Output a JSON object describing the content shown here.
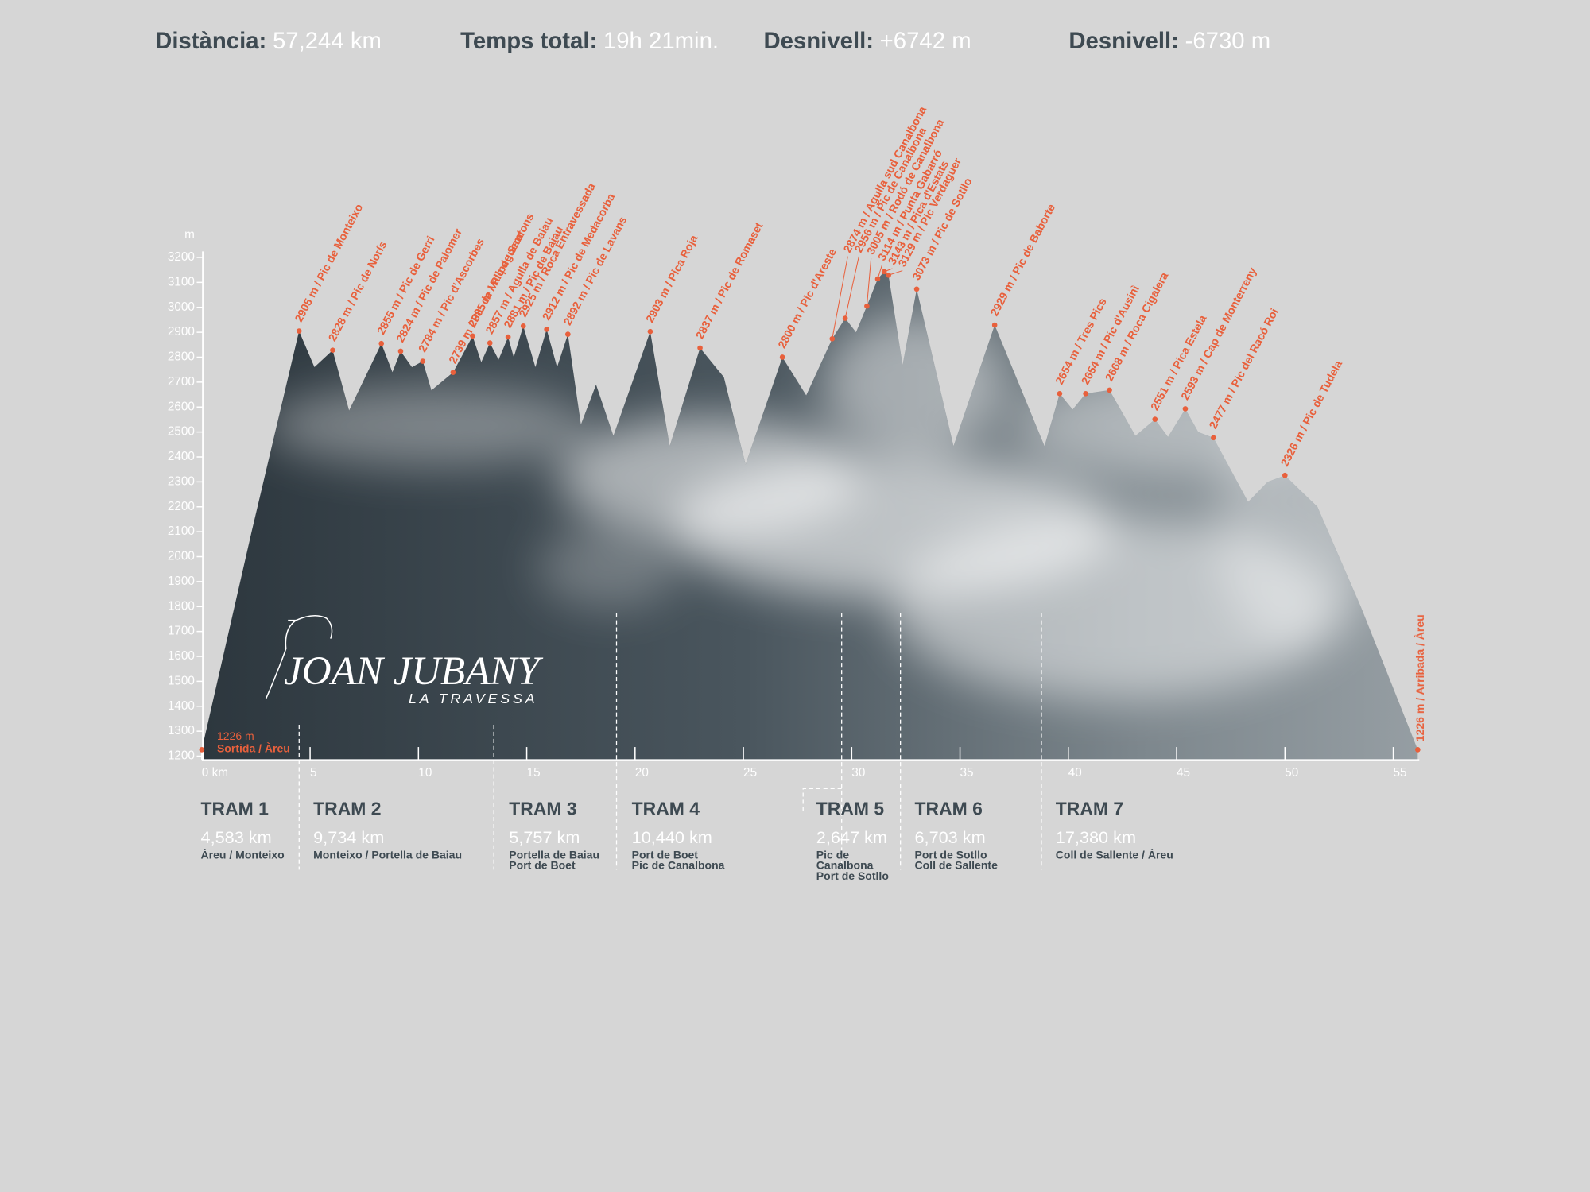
{
  "header": {
    "stats": [
      {
        "label": "Distància:",
        "value": "57,244 km"
      },
      {
        "label": "Temps total:",
        "value": "19h 21min."
      },
      {
        "label": "Desnivell:",
        "value": "+6742 m"
      },
      {
        "label": "Desnivell:",
        "value": "-6730 m"
      }
    ]
  },
  "chart_data": {
    "type": "area",
    "y_unit": "m",
    "x": [
      0,
      2.3,
      4.49,
      5.2,
      6.04,
      6.8,
      8.29,
      8.8,
      9.18,
      9.7,
      10.2,
      10.6,
      11.6,
      12.5,
      12.9,
      13.3,
      13.7,
      14.14,
      14.4,
      14.84,
      15.4,
      15.92,
      16.4,
      16.9,
      17.5,
      18.2,
      19.0,
      20.7,
      21.6,
      23.0,
      24.1,
      25.1,
      26.8,
      27.9,
      29.1,
      29.7,
      30.2,
      30.7,
      31.2,
      31.5,
      31.7,
      32.35,
      33.0,
      34.7,
      36.6,
      38.9,
      39.6,
      40.2,
      40.8,
      41.9,
      43.1,
      44.0,
      44.6,
      45.4,
      46.0,
      46.7,
      48.3,
      49.2,
      50.0,
      51.5,
      53.5,
      56.13
    ],
    "values": [
      1226,
      2100,
      2905,
      2760,
      2828,
      2586,
      2855,
      2740,
      2824,
      2760,
      2784,
      2667,
      2739,
      2885,
      2780,
      2857,
      2790,
      2881,
      2800,
      2925,
      2760,
      2912,
      2760,
      2892,
      2530,
      2690,
      2485,
      2903,
      2444,
      2837,
      2720,
      2370,
      2800,
      2647,
      2874,
      2956,
      2900,
      3005,
      3114,
      3143,
      3129,
      2769,
      3073,
      2444,
      2929,
      2444,
      2654,
      2590,
      2654,
      2668,
      2485,
      2551,
      2480,
      2593,
      2500,
      2477,
      2220,
      2300,
      2326,
      2200,
      1800,
      1226
    ],
    "xlim": [
      0,
      56.2
    ],
    "ylim": [
      1200,
      3200
    ],
    "xticks": [
      {
        "value": 0,
        "label": "0 km"
      },
      5,
      10,
      15,
      20,
      25,
      30,
      35,
      40,
      45,
      50,
      55
    ],
    "yticks": [
      1200,
      1300,
      1400,
      1500,
      1600,
      1700,
      1800,
      1900,
      2000,
      2100,
      2200,
      2300,
      2400,
      2500,
      2600,
      2700,
      2800,
      2900,
      3000,
      3100,
      3200
    ],
    "accent_color": "#e8603c",
    "start": {
      "km": 0,
      "elevation": 1226,
      "elevation_label": "1226 m",
      "label": "Sortida / Àreu"
    },
    "end": {
      "km": 56.13,
      "elevation": 1226,
      "label": "1226 m / Arribada / Àreu"
    },
    "peaks": [
      {
        "label": "2905 m / Pic de Monteixo",
        "km": 4.49,
        "elevation": 2905
      },
      {
        "label": "2828 m / Pic de Norís",
        "km": 6.04,
        "elevation": 2828
      },
      {
        "label": "2855 m / Pic de Gerri",
        "km": 8.29,
        "elevation": 2855
      },
      {
        "label": "2824 m / Pic de Palomer",
        "km": 9.18,
        "elevation": 2824
      },
      {
        "label": "2784 m / Pic d'Ascorbes",
        "km": 10.2,
        "elevation": 2784
      },
      {
        "label": "2739 m / Pic de Vallpeguera",
        "km": 11.6,
        "elevation": 2739
      },
      {
        "label": "2885 m / Pic de Sanfons",
        "km": 12.5,
        "elevation": 2885
      },
      {
        "label": "2857 m / Agulla de Baiau",
        "km": 13.3,
        "elevation": 2857
      },
      {
        "label": "2881 m / Pic de Baiau",
        "km": 14.14,
        "elevation": 2881
      },
      {
        "label": "2925 m / Roca Entravessada",
        "km": 14.84,
        "elevation": 2925
      },
      {
        "label": "2912 m / Pic de Medacorba",
        "km": 15.92,
        "elevation": 2912
      },
      {
        "label": "2892 m / Pic de Lavans",
        "km": 16.9,
        "elevation": 2892
      },
      {
        "label": "2903 m / Pica Roja",
        "km": 20.7,
        "elevation": 2903
      },
      {
        "label": "2837 m / Pic de Romaset",
        "km": 23.0,
        "elevation": 2837
      },
      {
        "label": "2800 m / Pic d'Areste",
        "km": 26.8,
        "elevation": 2800
      },
      {
        "label": "2874 m / Agulla sud Canalbona",
        "km": 29.1,
        "elevation": 2874
      },
      {
        "label": "2956 m / Pic de Canalbona",
        "km": 29.7,
        "elevation": 2956
      },
      {
        "label": "3005 m / Rodó de Canalbona",
        "km": 30.7,
        "elevation": 3005
      },
      {
        "label": "3114 m / Punta Gabarró",
        "km": 31.2,
        "elevation": 3114
      },
      {
        "label": "3143 m / Pica d'Estats",
        "km": 31.5,
        "elevation": 3143
      },
      {
        "label": "3129 m / Pic Verdaguer",
        "km": 31.7,
        "elevation": 3129
      },
      {
        "label": "3073 m / Pic de Sotllo",
        "km": 33.0,
        "elevation": 3073
      },
      {
        "label": "2929 m / Pic de Baborte",
        "km": 36.6,
        "elevation": 2929
      },
      {
        "label": "2654 m / Tres Pics",
        "km": 39.6,
        "elevation": 2654
      },
      {
        "label": "2654 m / Pic d'Ausinì",
        "km": 40.8,
        "elevation": 2654
      },
      {
        "label": "2668 m / Roca Cigalera",
        "km": 41.9,
        "elevation": 2668
      },
      {
        "label": "2551 m / Pica Estela",
        "km": 44.0,
        "elevation": 2551
      },
      {
        "label": "2593 m / Cap de Monterreny",
        "km": 45.4,
        "elevation": 2593
      },
      {
        "label": "2477 m / Pic del Racó Roi",
        "km": 46.7,
        "elevation": 2477
      },
      {
        "label": "2326 m / Pic de Tudela",
        "km": 50.0,
        "elevation": 2326
      }
    ],
    "trams": [
      {
        "name": "TRAM 1",
        "distance": "4,583 km",
        "route": [
          "Àreu / Monteixo"
        ]
      },
      {
        "name": "TRAM 2",
        "distance": "9,734 km",
        "route": [
          "Monteixo / Portella de Baiau"
        ]
      },
      {
        "name": "TRAM 3",
        "distance": "5,757 km",
        "route": [
          "Portella de Baiau",
          "Port de Boet"
        ]
      },
      {
        "name": "TRAM 4",
        "distance": "10,440 km",
        "route": [
          "Port de Boet",
          "Pic de Canalbona"
        ]
      },
      {
        "name": "TRAM 5",
        "distance": "2,647 km",
        "route": [
          "Pic de",
          "Canalbona",
          "Port de Sotllo"
        ]
      },
      {
        "name": "TRAM 6",
        "distance": "6,703 km",
        "route": [
          "Port de Sotllo",
          "Coll de Sallente"
        ]
      },
      {
        "name": "TRAM 7",
        "distance": "17,380 km",
        "route": [
          "Coll de Sallente / Àreu"
        ]
      }
    ]
  },
  "logo": {
    "title": "JOAN JUBANY",
    "subtitle": "LA TRAVESSA"
  }
}
